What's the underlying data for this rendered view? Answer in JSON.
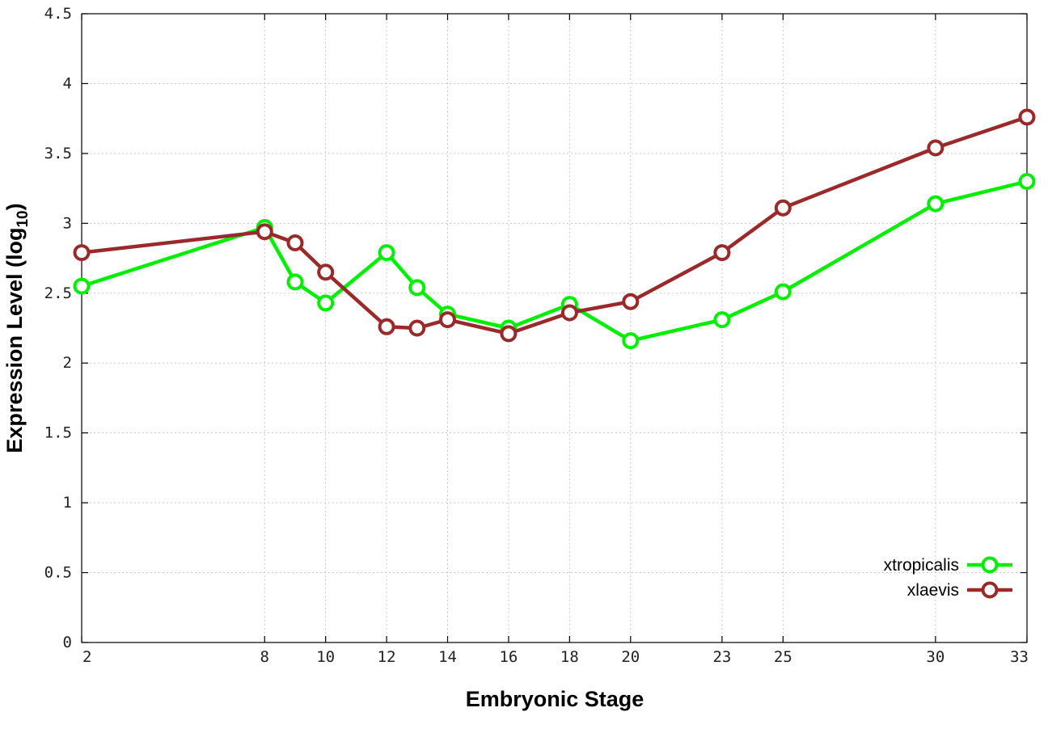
{
  "chart_data": {
    "type": "line",
    "xlabel": "Embryonic Stage",
    "ylabel": {
      "main": "Expression Level (log",
      "sub": "10",
      "close": ")"
    },
    "xlim": [
      2,
      33
    ],
    "ylim": [
      0,
      4.5
    ],
    "xticks": [
      2,
      8,
      10,
      12,
      14,
      16,
      18,
      20,
      23,
      25,
      30,
      33
    ],
    "yticks": [
      0,
      0.5,
      1,
      1.5,
      2,
      2.5,
      3,
      3.5,
      4,
      4.5
    ],
    "grid": true,
    "legend_position": "bottom-right",
    "x": [
      2,
      8,
      9,
      10,
      12,
      13,
      14,
      16,
      18,
      20,
      23,
      25,
      30,
      33
    ],
    "series": [
      {
        "name": "xtropicalis",
        "color": "#00ee00",
        "marker": "open-circle",
        "values": [
          2.55,
          2.97,
          2.58,
          2.43,
          2.79,
          2.54,
          2.35,
          2.25,
          2.42,
          2.16,
          2.31,
          2.51,
          3.14,
          3.3
        ]
      },
      {
        "name": "xlaevis",
        "color": "#9a2a2a",
        "marker": "open-circle",
        "values": [
          2.79,
          2.94,
          2.86,
          2.65,
          2.26,
          2.25,
          2.31,
          2.21,
          2.36,
          2.44,
          2.79,
          3.11,
          3.54,
          3.76
        ]
      }
    ]
  }
}
